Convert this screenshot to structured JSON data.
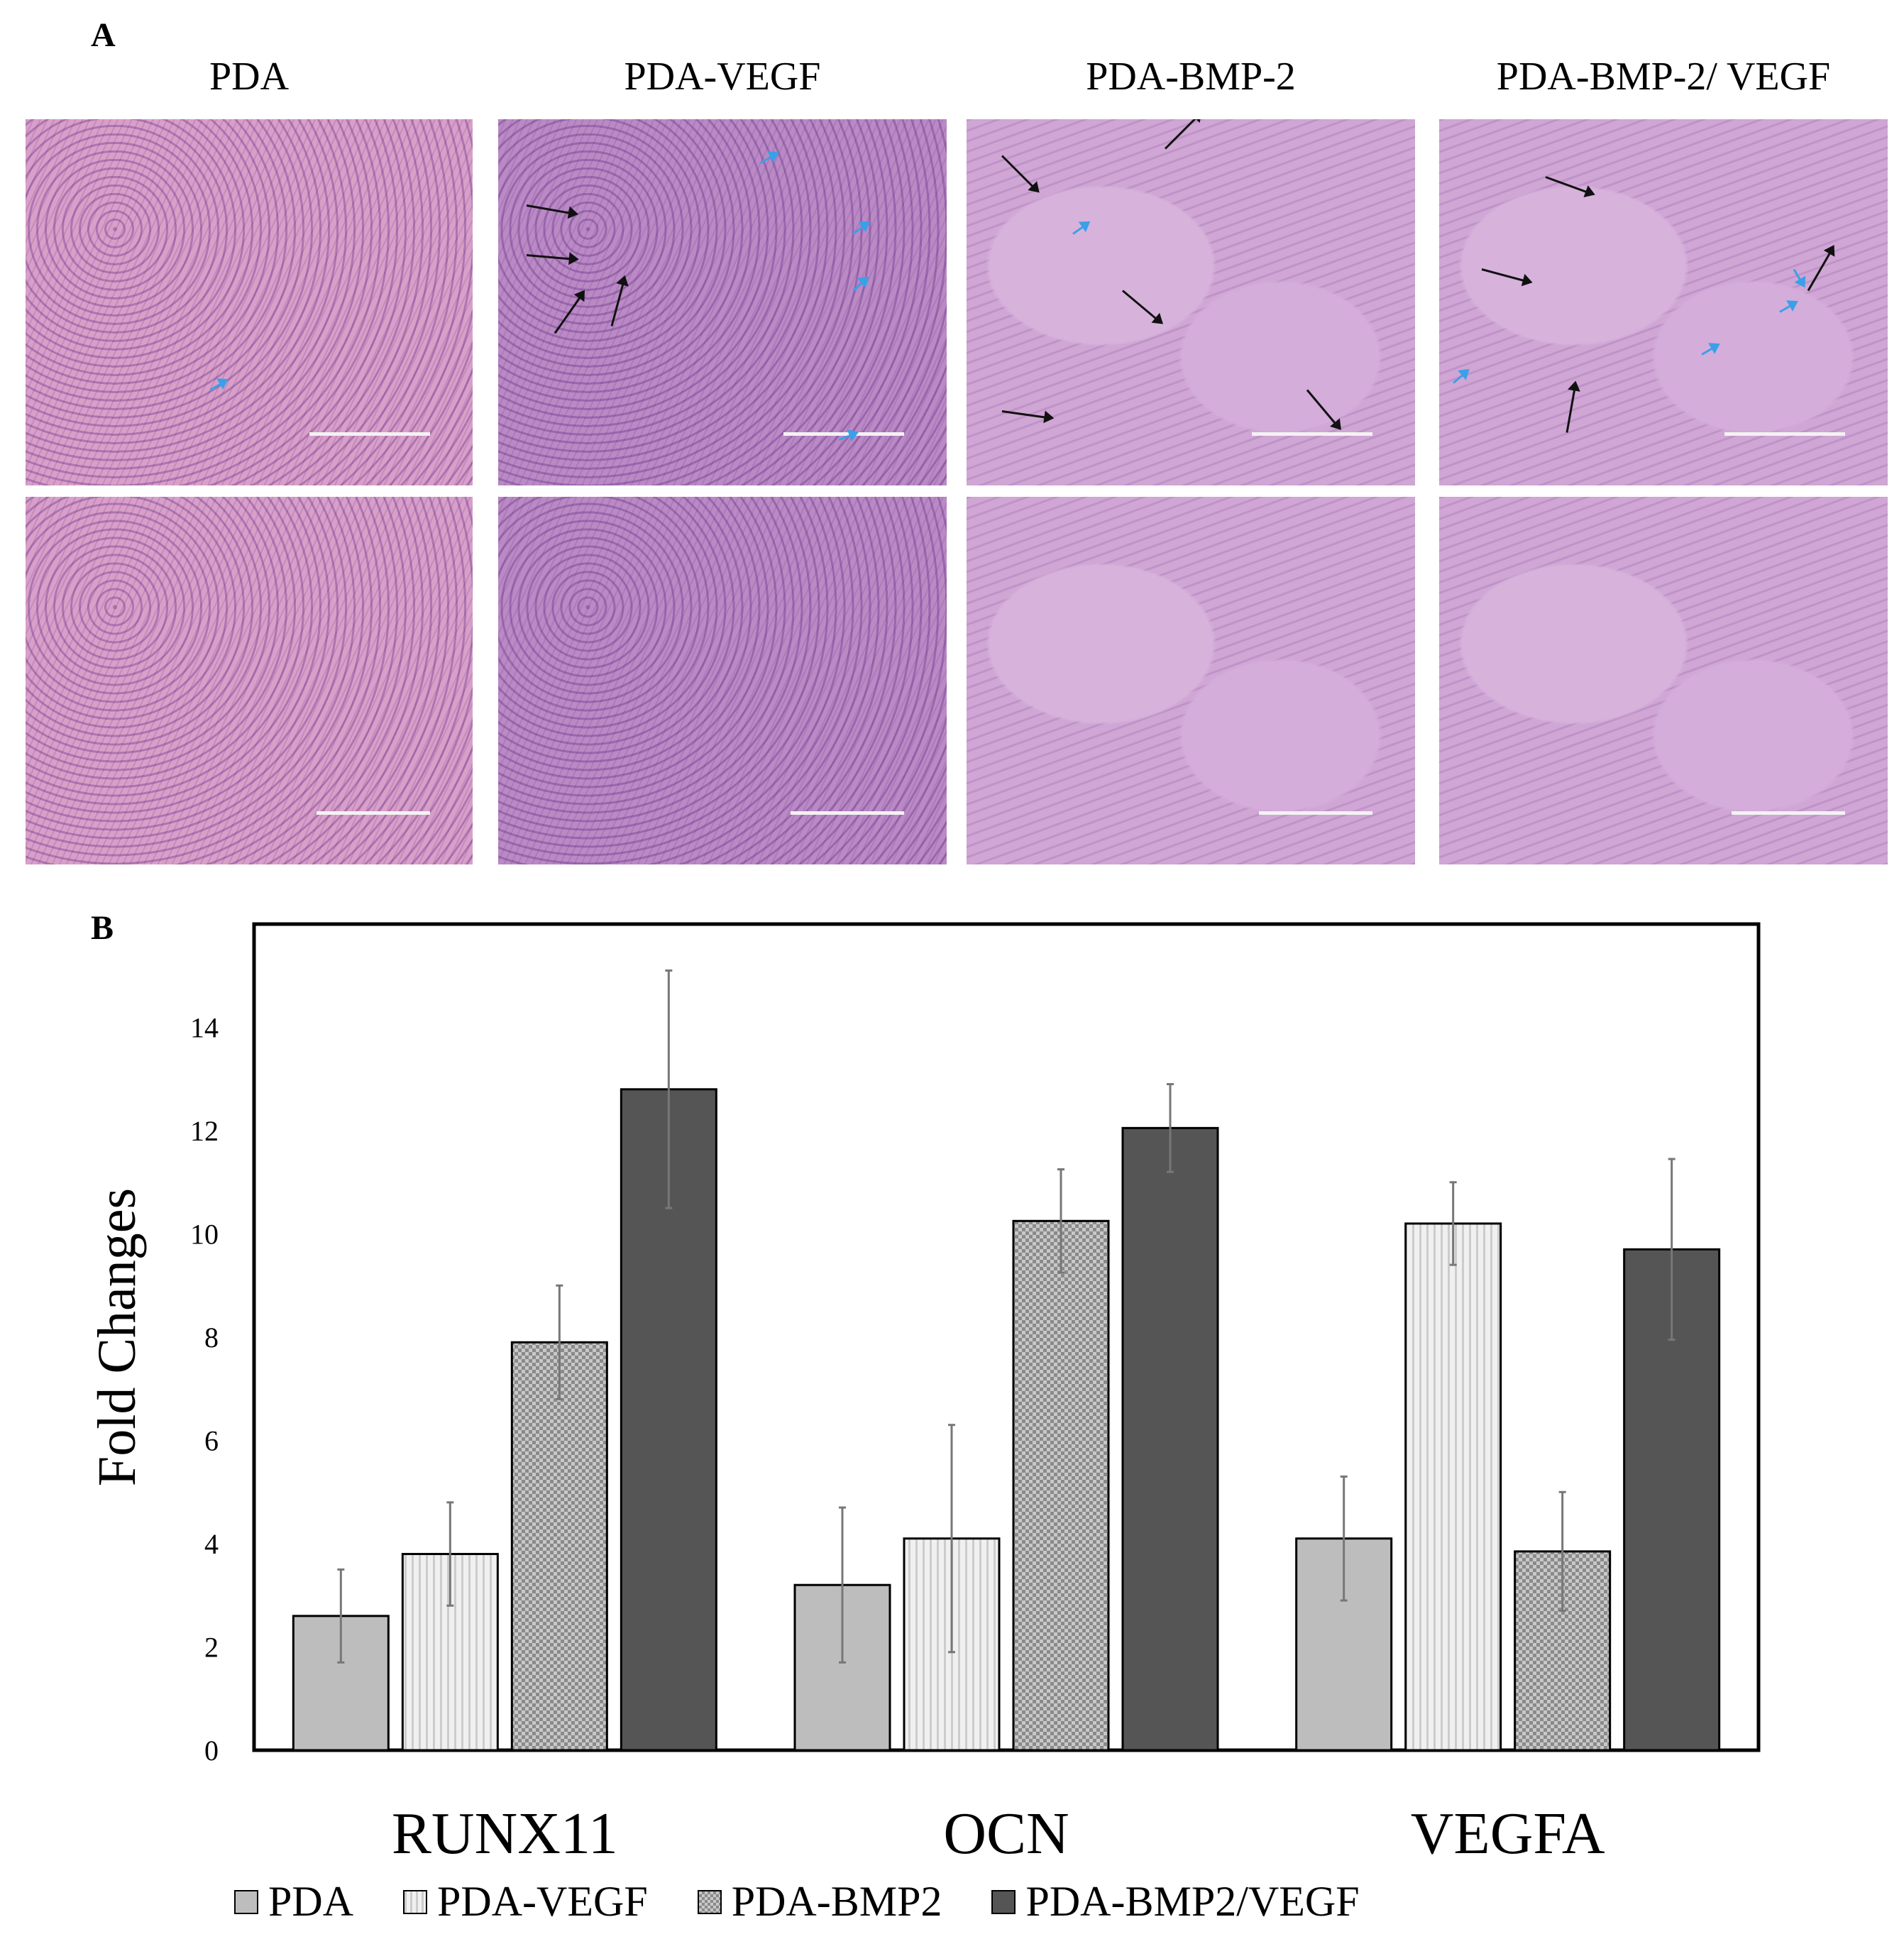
{
  "panel_a": {
    "letter": "A",
    "columns": [
      {
        "title": "PDA",
        "tone": "pink"
      },
      {
        "title": "PDA-VEGF",
        "tone": "purple"
      },
      {
        "title": "PDA-BMP-2",
        "tone": "bone"
      },
      {
        "title": "PDA-BMP-2/ VEGF",
        "tone": "bone"
      }
    ]
  },
  "colors": {
    "pda": "#bdbdbd",
    "pda_vegf": "#ececec",
    "pda_bmp2": "#a9a9a9",
    "pda_bmp2_vegf": "#555555",
    "tissue_pink": "#d8a0c8",
    "tissue_purple": "#b98ac4",
    "tissue_bone": "#cfa6d4",
    "arrow_blue": "#3aa0e8"
  },
  "chart_data": {
    "panel_letter": "B",
    "type": "bar",
    "ylabel": "Fold Changes",
    "xlabel": "",
    "ylim": [
      0,
      16
    ],
    "yticks": [
      0,
      2,
      4,
      6,
      8,
      10,
      12,
      14
    ],
    "grid": false,
    "legend_position": "bottom",
    "categories": [
      "RUNX11",
      "OCN",
      "VEGFA"
    ],
    "series": [
      {
        "name": "PDA",
        "pattern": "solid-light",
        "values": [
          2.6,
          3.2,
          4.1
        ],
        "errors": [
          0.9,
          1.5,
          1.2
        ]
      },
      {
        "name": "PDA-VEGF",
        "pattern": "vertical-stripes",
        "values": [
          3.8,
          4.1,
          10.2
        ],
        "errors": [
          1.0,
          2.2,
          0.8
        ]
      },
      {
        "name": "PDA-BMP2",
        "pattern": "checker",
        "values": [
          7.9,
          10.25,
          3.85
        ],
        "errors": [
          1.1,
          1.0,
          1.15
        ]
      },
      {
        "name": "PDA-BMP2/VEGF",
        "pattern": "solid-dark",
        "values": [
          12.8,
          12.05,
          9.7
        ],
        "errors": [
          2.3,
          0.85,
          1.75
        ]
      }
    ]
  }
}
